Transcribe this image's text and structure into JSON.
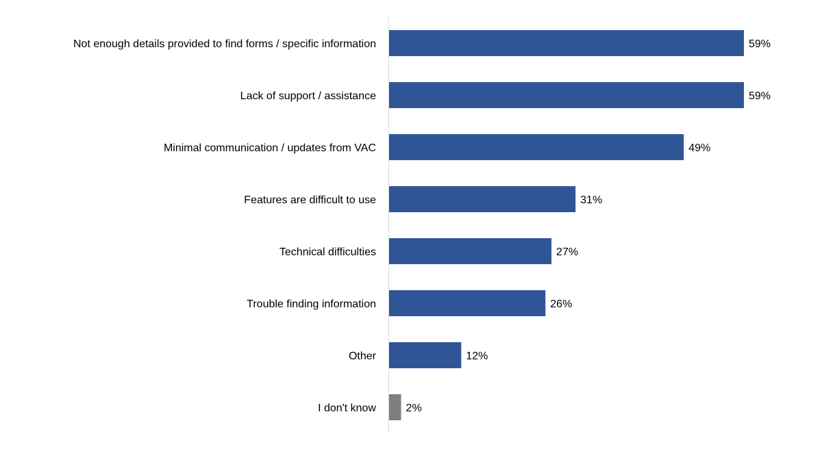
{
  "chart_data": {
    "type": "bar",
    "orientation": "horizontal",
    "categories": [
      "Not enough details provided to find forms / specific information",
      "Lack of support / assistance",
      "Minimal communication / updates from VAC",
      "Features are difficult to use",
      "Technical difficulties",
      "Trouble finding information",
      "Other",
      "I don't know"
    ],
    "values": [
      59,
      59,
      49,
      31,
      27,
      26,
      12,
      2
    ],
    "value_labels": [
      "59%",
      "59%",
      "49%",
      "31%",
      "27%",
      "26%",
      "12%",
      "2%"
    ],
    "bar_colors": [
      "#2F5597",
      "#2F5597",
      "#2F5597",
      "#2F5597",
      "#2F5597",
      "#2F5597",
      "#2F5597",
      "#7F7F7F"
    ],
    "xlim": [
      0,
      100
    ],
    "unit": "%",
    "grid": false,
    "legend": "none"
  }
}
